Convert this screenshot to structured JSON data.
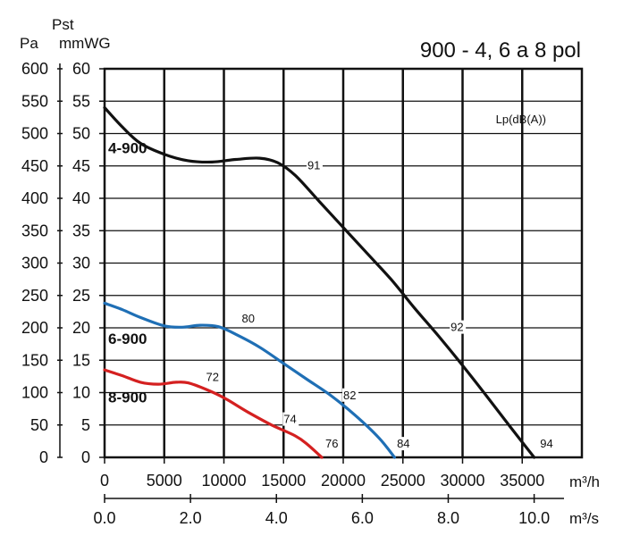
{
  "chart_data": {
    "type": "line",
    "title": "900 - 4, 6 a 8 pol",
    "ylabel_pst": "Pst",
    "ylabel_pa": "Pa",
    "ylabel_mmwg": "mmWG",
    "xlabel_m3h": "m³/h",
    "xlabel_m3s": "m³/s",
    "lp_label": "Lp(dB(A))",
    "xlim": [
      0,
      40000
    ],
    "ylim_mmwg": [
      0,
      60
    ],
    "ylim_pa": [
      0,
      600
    ],
    "grid": true,
    "x_ticks_m3h": [
      0,
      5000,
      10000,
      15000,
      20000,
      25000,
      30000,
      35000
    ],
    "x_ticks_m3s": [
      "0.0",
      "2.0",
      "4.0",
      "6.0",
      "8.0",
      "10.0"
    ],
    "x_ticks_m3s_values": [
      0,
      2,
      4,
      6,
      8,
      10
    ],
    "y_ticks_mmwg": [
      0,
      5,
      10,
      15,
      20,
      25,
      30,
      35,
      40,
      45,
      50,
      55,
      60
    ],
    "y_ticks_pa": [
      0,
      50,
      100,
      150,
      200,
      250,
      300,
      350,
      400,
      450,
      500,
      550,
      600
    ],
    "series": [
      {
        "name": "4-900",
        "color": "#111111",
        "label_at": [
          0,
          47
        ],
        "points": [
          [
            0,
            54
          ],
          [
            1500,
            51
          ],
          [
            3000,
            48.5
          ],
          [
            5000,
            46.8
          ],
          [
            7000,
            45.8
          ],
          [
            9000,
            45.6
          ],
          [
            11000,
            46
          ],
          [
            13000,
            46.2
          ],
          [
            14500,
            45.5
          ],
          [
            16000,
            43.5
          ],
          [
            18000,
            39.5
          ],
          [
            20000,
            35.5
          ],
          [
            22000,
            31.5
          ],
          [
            24000,
            27.5
          ],
          [
            26000,
            23
          ],
          [
            28000,
            18.7
          ],
          [
            30000,
            14.2
          ],
          [
            32000,
            9.5
          ],
          [
            34000,
            4.7
          ],
          [
            36000,
            0
          ]
        ],
        "noise_labels": [
          {
            "text": "91",
            "x": 17000,
            "y": 44.5
          },
          {
            "text": "92",
            "x": 29000,
            "y": 19.5
          },
          {
            "text": "94",
            "x": 36500,
            "y": 1.5
          }
        ]
      },
      {
        "name": "6-900",
        "color": "#1f6fb5",
        "label_at": [
          0,
          17.5
        ],
        "points": [
          [
            0,
            23.8
          ],
          [
            1500,
            22.8
          ],
          [
            3000,
            21.6
          ],
          [
            5000,
            20.3
          ],
          [
            6500,
            20.1
          ],
          [
            8000,
            20.4
          ],
          [
            9500,
            20.2
          ],
          [
            11000,
            19
          ],
          [
            13000,
            17
          ],
          [
            15000,
            14.5
          ],
          [
            17000,
            12
          ],
          [
            19000,
            9.5
          ],
          [
            21000,
            6.5
          ],
          [
            23000,
            3
          ],
          [
            24300,
            0
          ]
        ],
        "noise_labels": [
          {
            "text": "80",
            "x": 11500,
            "y": 20.8
          },
          {
            "text": "82",
            "x": 20000,
            "y": 9
          },
          {
            "text": "84",
            "x": 24500,
            "y": 1.5
          }
        ]
      },
      {
        "name": "8-900",
        "color": "#d42020",
        "label_at": [
          0,
          8.5
        ],
        "points": [
          [
            0,
            13.5
          ],
          [
            1500,
            12.6
          ],
          [
            3000,
            11.6
          ],
          [
            4500,
            11.3
          ],
          [
            6000,
            11.6
          ],
          [
            7000,
            11.5
          ],
          [
            8500,
            10.5
          ],
          [
            10000,
            9.2
          ],
          [
            12000,
            7
          ],
          [
            14000,
            5
          ],
          [
            16000,
            3.3
          ],
          [
            17000,
            2
          ],
          [
            18200,
            0
          ]
        ],
        "noise_labels": [
          {
            "text": "72",
            "x": 8500,
            "y": 11.8
          },
          {
            "text": "74",
            "x": 15000,
            "y": 5.3
          },
          {
            "text": "76",
            "x": 18500,
            "y": 1.5
          }
        ]
      }
    ]
  }
}
